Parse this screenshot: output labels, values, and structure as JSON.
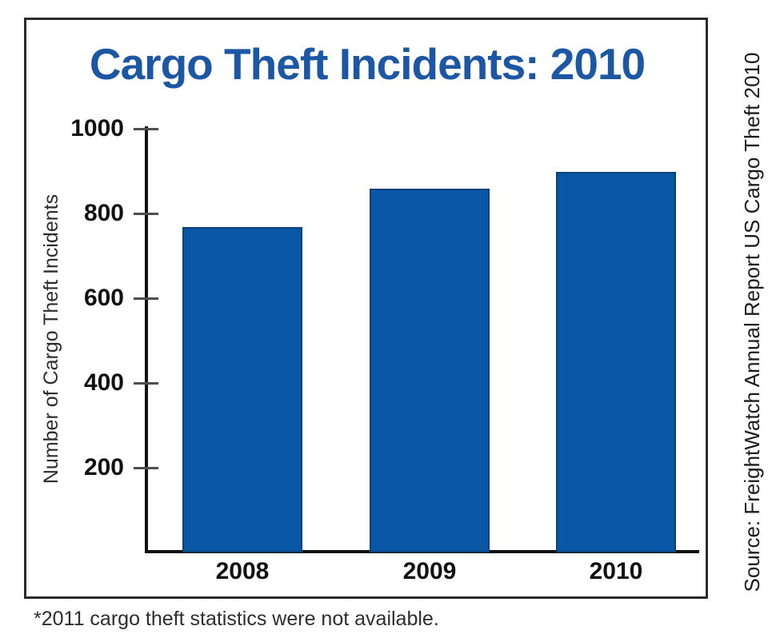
{
  "title": "Cargo Theft Incidents: 2010",
  "footnote": "*2011 cargo theft statistics were not available.",
  "source": "Source: FreightWatch Annual Report US Cargo Theft 2010",
  "colors": {
    "bar_fill": "#0856a5",
    "bar_border": "#0d4179",
    "title_blue": "#1c57a5",
    "axis_black": "#111111",
    "frame_border": "#2b2b2b",
    "text_dark": "#2d2d2d"
  },
  "chart_data": {
    "type": "bar",
    "categories": [
      "2008",
      "2009",
      "2010"
    ],
    "values": [
      767,
      859,
      899
    ],
    "title": "Cargo Theft Incidents: 2010",
    "xlabel": "",
    "ylabel": "Number of Cargo Theft Incidents",
    "ylim": [
      0,
      1000
    ],
    "yticks": [
      200,
      400,
      600,
      800,
      1000
    ],
    "grid": false,
    "legend_position": "none"
  }
}
